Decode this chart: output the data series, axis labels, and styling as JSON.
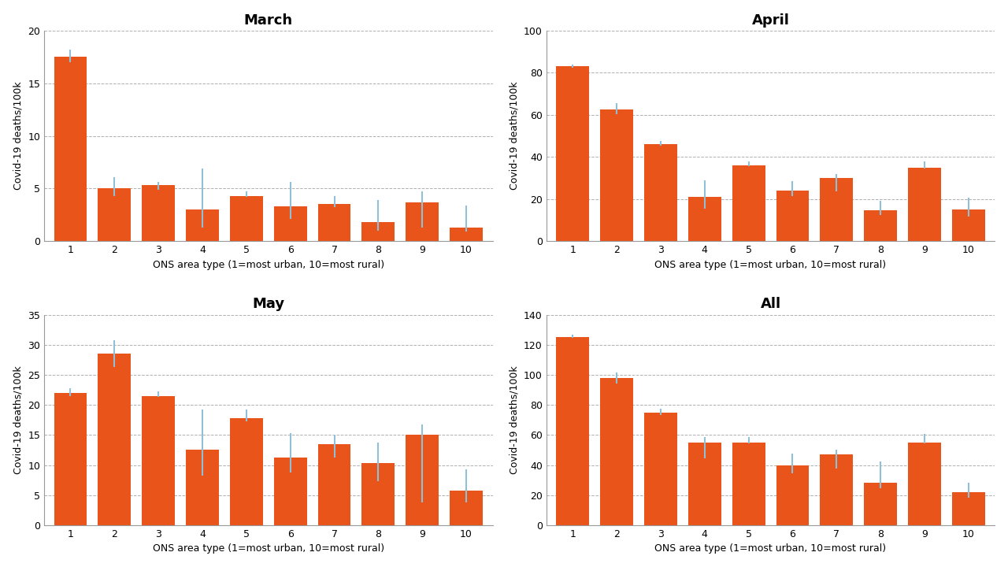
{
  "subplots": [
    {
      "title": "March",
      "ylim": [
        0,
        20
      ],
      "yticks": [
        0,
        5,
        10,
        15,
        20
      ],
      "values": [
        17.5,
        5.0,
        5.3,
        3.0,
        4.3,
        3.3,
        3.5,
        1.8,
        3.7,
        1.3
      ],
      "err_low": [
        17.0,
        4.3,
        4.9,
        1.3,
        4.2,
        2.1,
        3.2,
        1.0,
        1.3,
        0.9
      ],
      "err_high": [
        18.2,
        6.1,
        5.6,
        6.9,
        4.7,
        5.6,
        4.3,
        3.9,
        4.7,
        3.4
      ]
    },
    {
      "title": "April",
      "ylim": [
        0,
        100
      ],
      "yticks": [
        0,
        20,
        40,
        60,
        80,
        100
      ],
      "values": [
        83.0,
        62.5,
        46.0,
        21.0,
        36.0,
        24.0,
        30.0,
        14.5,
        35.0,
        15.0
      ],
      "err_low": [
        82.5,
        60.5,
        45.5,
        15.5,
        35.5,
        21.5,
        23.5,
        12.5,
        34.5,
        11.5
      ],
      "err_high": [
        84.0,
        65.5,
        47.5,
        29.0,
        38.0,
        28.5,
        32.0,
        19.0,
        38.0,
        20.5
      ]
    },
    {
      "title": "May",
      "ylim": [
        0,
        35
      ],
      "yticks": [
        0,
        5,
        10,
        15,
        20,
        25,
        30,
        35
      ],
      "values": [
        22.0,
        28.5,
        21.5,
        12.5,
        17.8,
        11.3,
        13.5,
        10.3,
        15.0,
        5.7
      ],
      "err_low": [
        21.5,
        26.3,
        21.3,
        8.3,
        17.3,
        8.8,
        11.3,
        7.3,
        3.8,
        3.8
      ],
      "err_high": [
        22.8,
        30.8,
        22.3,
        19.3,
        19.3,
        15.3,
        15.1,
        13.8,
        16.8,
        9.3
      ]
    },
    {
      "title": "All",
      "ylim": [
        0,
        140
      ],
      "yticks": [
        0,
        20,
        40,
        60,
        80,
        100,
        120,
        140
      ],
      "values": [
        125.0,
        98.0,
        75.0,
        55.0,
        55.0,
        40.0,
        47.0,
        28.0,
        55.0,
        22.0
      ],
      "err_low": [
        124.5,
        94.5,
        73.5,
        44.5,
        54.5,
        34.5,
        37.5,
        24.5,
        54.5,
        18.5
      ],
      "err_high": [
        126.5,
        101.5,
        77.5,
        58.5,
        58.5,
        47.5,
        50.5,
        42.5,
        60.5,
        28.5
      ]
    }
  ],
  "bar_color": "#E8541A",
  "err_color": "#90C0D8",
  "xlabel": "ONS area type (1=most urban, 10=most rural)",
  "ylabel": "Covid-19 deaths/100k",
  "bg_color": "#FFFFFF",
  "grid_color": "#B0B0B0",
  "categories": [
    1,
    2,
    3,
    4,
    5,
    6,
    7,
    8,
    9,
    10
  ],
  "bar_width": 0.75
}
